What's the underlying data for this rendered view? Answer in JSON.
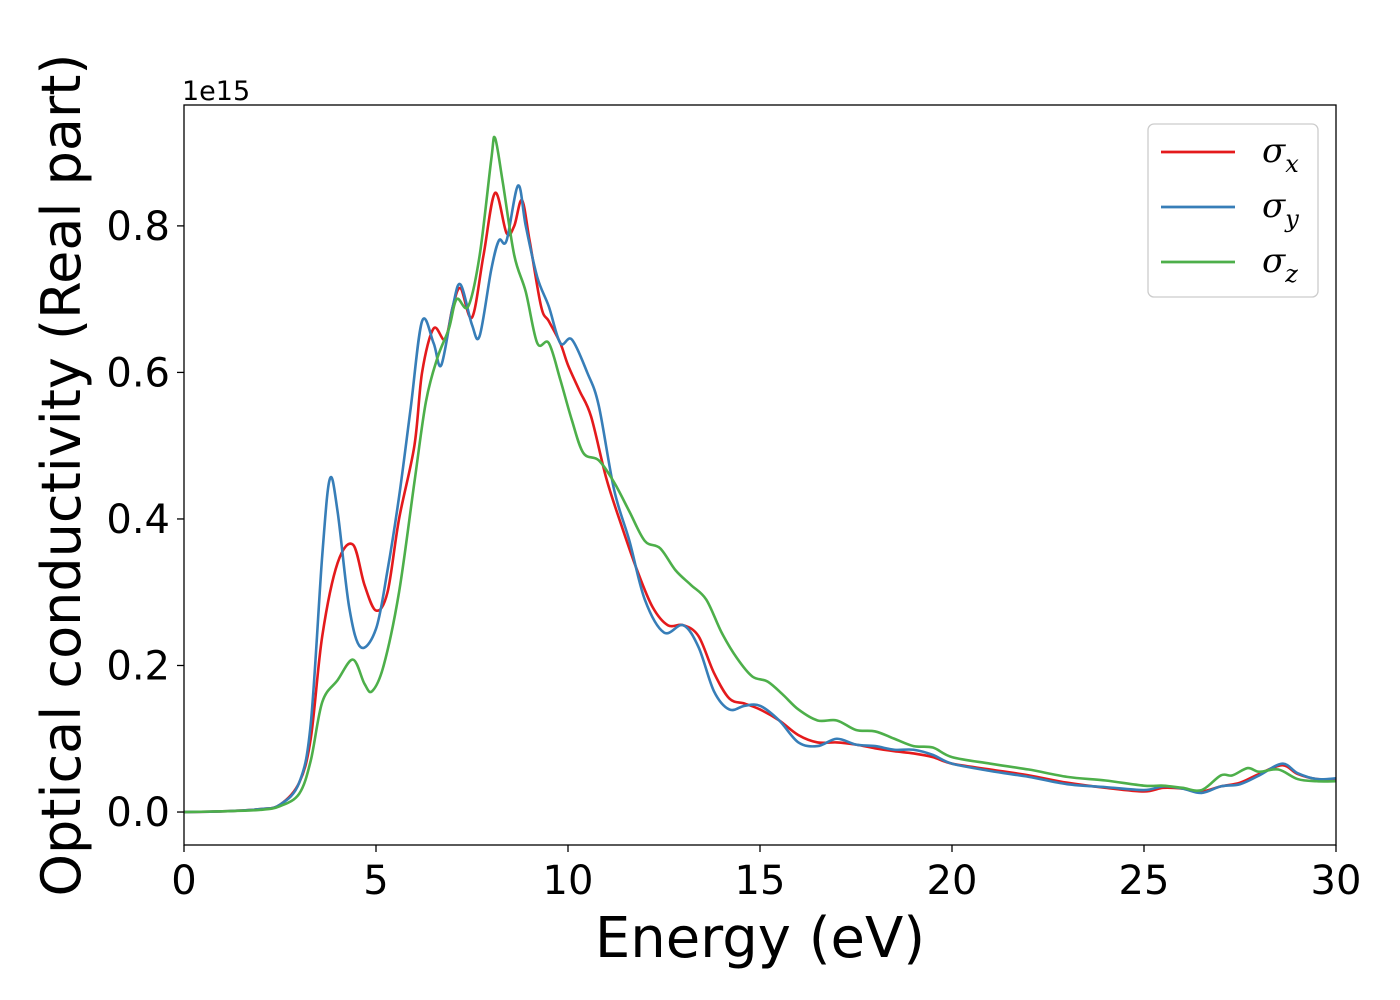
{
  "chart_data": {
    "type": "line",
    "xlabel": "Energy (eV)",
    "ylabel": "Optical conductivity (Real part)",
    "y_offset_label": "1e15",
    "xlim": [
      0,
      30
    ],
    "ylim": [
      -0.045,
      0.965
    ],
    "x_ticks": [
      0,
      5,
      10,
      15,
      20,
      25,
      30
    ],
    "y_ticks": [
      0.0,
      0.2,
      0.4,
      0.6,
      0.8
    ],
    "x_tick_labels": [
      "0",
      "5",
      "10",
      "15",
      "20",
      "25",
      "30"
    ],
    "y_tick_labels": [
      "0.0",
      "0.2",
      "0.4",
      "0.6",
      "0.8"
    ],
    "grid": false,
    "legend_position": "top-right",
    "series": [
      {
        "name": "σx",
        "symbol": "σ",
        "subscript": "x",
        "color": "#e41a1c",
        "points": [
          [
            0,
            0
          ],
          [
            1,
            0.001
          ],
          [
            2,
            0.004
          ],
          [
            2.5,
            0.01
          ],
          [
            3,
            0.04
          ],
          [
            3.3,
            0.1
          ],
          [
            3.6,
            0.24
          ],
          [
            4.0,
            0.34
          ],
          [
            4.4,
            0.365
          ],
          [
            4.7,
            0.31
          ],
          [
            5.0,
            0.275
          ],
          [
            5.3,
            0.3
          ],
          [
            5.6,
            0.4
          ],
          [
            6.0,
            0.5
          ],
          [
            6.2,
            0.6
          ],
          [
            6.5,
            0.66
          ],
          [
            6.8,
            0.645
          ],
          [
            7.0,
            0.69
          ],
          [
            7.2,
            0.715
          ],
          [
            7.5,
            0.675
          ],
          [
            7.8,
            0.76
          ],
          [
            8.1,
            0.845
          ],
          [
            8.4,
            0.79
          ],
          [
            8.6,
            0.8
          ],
          [
            8.8,
            0.835
          ],
          [
            9.0,
            0.78
          ],
          [
            9.3,
            0.69
          ],
          [
            9.5,
            0.67
          ],
          [
            9.8,
            0.64
          ],
          [
            10.0,
            0.61
          ],
          [
            10.3,
            0.575
          ],
          [
            10.6,
            0.54
          ],
          [
            11.0,
            0.455
          ],
          [
            11.4,
            0.39
          ],
          [
            11.8,
            0.33
          ],
          [
            12.2,
            0.28
          ],
          [
            12.6,
            0.255
          ],
          [
            13.0,
            0.255
          ],
          [
            13.4,
            0.24
          ],
          [
            13.8,
            0.19
          ],
          [
            14.2,
            0.155
          ],
          [
            14.6,
            0.148
          ],
          [
            15.0,
            0.14
          ],
          [
            15.5,
            0.125
          ],
          [
            16.0,
            0.105
          ],
          [
            16.5,
            0.095
          ],
          [
            17.0,
            0.095
          ],
          [
            17.5,
            0.092
          ],
          [
            18.0,
            0.087
          ],
          [
            18.5,
            0.083
          ],
          [
            19.0,
            0.08
          ],
          [
            19.5,
            0.075
          ],
          [
            20.0,
            0.066
          ],
          [
            21.0,
            0.058
          ],
          [
            22.0,
            0.05
          ],
          [
            23.0,
            0.04
          ],
          [
            24.0,
            0.033
          ],
          [
            25.0,
            0.028
          ],
          [
            25.5,
            0.033
          ],
          [
            26.0,
            0.032
          ],
          [
            26.5,
            0.028
          ],
          [
            27.0,
            0.035
          ],
          [
            27.5,
            0.04
          ],
          [
            28.0,
            0.052
          ],
          [
            28.6,
            0.064
          ],
          [
            29.0,
            0.052
          ],
          [
            29.5,
            0.045
          ],
          [
            30.0,
            0.045
          ]
        ]
      },
      {
        "name": "σy",
        "symbol": "σ",
        "subscript": "y",
        "color": "#377eb8",
        "points": [
          [
            0,
            0
          ],
          [
            1,
            0.001
          ],
          [
            2,
            0.004
          ],
          [
            2.5,
            0.01
          ],
          [
            3,
            0.04
          ],
          [
            3.3,
            0.12
          ],
          [
            3.6,
            0.35
          ],
          [
            3.8,
            0.455
          ],
          [
            4.0,
            0.41
          ],
          [
            4.3,
            0.28
          ],
          [
            4.6,
            0.225
          ],
          [
            5.0,
            0.25
          ],
          [
            5.3,
            0.33
          ],
          [
            5.6,
            0.43
          ],
          [
            5.9,
            0.55
          ],
          [
            6.2,
            0.67
          ],
          [
            6.5,
            0.64
          ],
          [
            6.7,
            0.61
          ],
          [
            7.0,
            0.69
          ],
          [
            7.2,
            0.72
          ],
          [
            7.5,
            0.665
          ],
          [
            7.7,
            0.65
          ],
          [
            8.0,
            0.74
          ],
          [
            8.2,
            0.78
          ],
          [
            8.4,
            0.78
          ],
          [
            8.7,
            0.855
          ],
          [
            8.9,
            0.8
          ],
          [
            9.2,
            0.73
          ],
          [
            9.5,
            0.69
          ],
          [
            9.8,
            0.64
          ],
          [
            10.1,
            0.645
          ],
          [
            10.5,
            0.6
          ],
          [
            10.8,
            0.555
          ],
          [
            11.2,
            0.44
          ],
          [
            11.6,
            0.37
          ],
          [
            12.0,
            0.29
          ],
          [
            12.5,
            0.245
          ],
          [
            13.0,
            0.255
          ],
          [
            13.4,
            0.225
          ],
          [
            13.8,
            0.165
          ],
          [
            14.2,
            0.14
          ],
          [
            14.6,
            0.145
          ],
          [
            15.0,
            0.145
          ],
          [
            15.5,
            0.125
          ],
          [
            16.0,
            0.095
          ],
          [
            16.5,
            0.09
          ],
          [
            17.0,
            0.1
          ],
          [
            17.5,
            0.092
          ],
          [
            18.0,
            0.09
          ],
          [
            18.5,
            0.085
          ],
          [
            19.0,
            0.085
          ],
          [
            19.5,
            0.078
          ],
          [
            20.0,
            0.066
          ],
          [
            21.0,
            0.056
          ],
          [
            22.0,
            0.048
          ],
          [
            23.0,
            0.038
          ],
          [
            24.0,
            0.034
          ],
          [
            25.0,
            0.03
          ],
          [
            25.5,
            0.035
          ],
          [
            26.0,
            0.032
          ],
          [
            26.5,
            0.026
          ],
          [
            27.0,
            0.035
          ],
          [
            27.5,
            0.038
          ],
          [
            28.0,
            0.05
          ],
          [
            28.6,
            0.066
          ],
          [
            29.0,
            0.053
          ],
          [
            29.5,
            0.045
          ],
          [
            30.0,
            0.046
          ]
        ]
      },
      {
        "name": "σz",
        "symbol": "σ",
        "subscript": "z",
        "color": "#4daf4a",
        "points": [
          [
            0,
            0
          ],
          [
            1,
            0.001
          ],
          [
            2,
            0.003
          ],
          [
            2.5,
            0.008
          ],
          [
            3,
            0.025
          ],
          [
            3.3,
            0.07
          ],
          [
            3.6,
            0.15
          ],
          [
            4.0,
            0.18
          ],
          [
            4.4,
            0.208
          ],
          [
            4.7,
            0.175
          ],
          [
            4.9,
            0.165
          ],
          [
            5.2,
            0.2
          ],
          [
            5.6,
            0.3
          ],
          [
            6.0,
            0.45
          ],
          [
            6.3,
            0.56
          ],
          [
            6.6,
            0.62
          ],
          [
            6.9,
            0.66
          ],
          [
            7.1,
            0.7
          ],
          [
            7.4,
            0.69
          ],
          [
            7.7,
            0.76
          ],
          [
            8.0,
            0.89
          ],
          [
            8.1,
            0.92
          ],
          [
            8.3,
            0.86
          ],
          [
            8.6,
            0.76
          ],
          [
            8.9,
            0.71
          ],
          [
            9.2,
            0.64
          ],
          [
            9.5,
            0.64
          ],
          [
            9.8,
            0.59
          ],
          [
            10.1,
            0.535
          ],
          [
            10.4,
            0.49
          ],
          [
            10.8,
            0.48
          ],
          [
            11.2,
            0.45
          ],
          [
            11.6,
            0.41
          ],
          [
            12.0,
            0.37
          ],
          [
            12.4,
            0.36
          ],
          [
            12.8,
            0.33
          ],
          [
            13.2,
            0.31
          ],
          [
            13.6,
            0.29
          ],
          [
            14.0,
            0.245
          ],
          [
            14.4,
            0.21
          ],
          [
            14.8,
            0.185
          ],
          [
            15.2,
            0.178
          ],
          [
            15.6,
            0.16
          ],
          [
            16.0,
            0.14
          ],
          [
            16.5,
            0.125
          ],
          [
            17.0,
            0.125
          ],
          [
            17.5,
            0.112
          ],
          [
            18.0,
            0.11
          ],
          [
            18.5,
            0.1
          ],
          [
            19.0,
            0.09
          ],
          [
            19.5,
            0.088
          ],
          [
            20.0,
            0.075
          ],
          [
            21.0,
            0.066
          ],
          [
            22.0,
            0.058
          ],
          [
            23.0,
            0.048
          ],
          [
            24.0,
            0.043
          ],
          [
            25.0,
            0.036
          ],
          [
            25.5,
            0.036
          ],
          [
            26.0,
            0.033
          ],
          [
            26.5,
            0.03
          ],
          [
            27.0,
            0.05
          ],
          [
            27.3,
            0.05
          ],
          [
            27.7,
            0.06
          ],
          [
            28.0,
            0.055
          ],
          [
            28.5,
            0.058
          ],
          [
            29.0,
            0.045
          ],
          [
            29.5,
            0.042
          ],
          [
            30.0,
            0.042
          ]
        ]
      }
    ]
  }
}
